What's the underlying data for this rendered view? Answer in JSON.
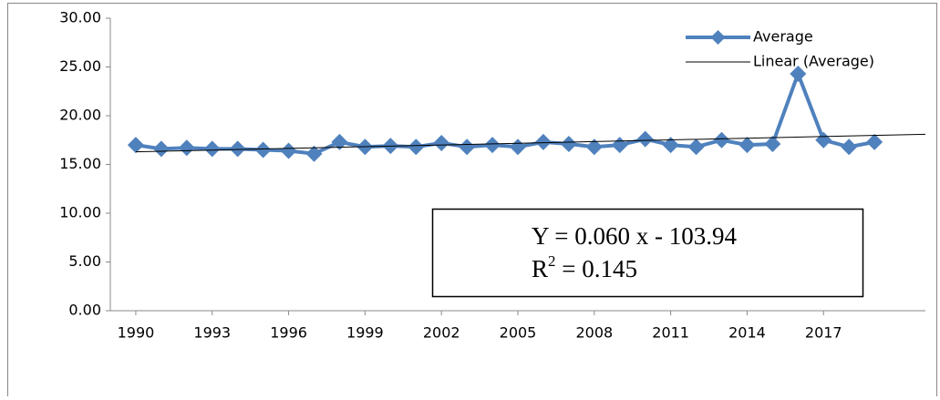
{
  "chart_data": {
    "type": "line",
    "x": [
      1990,
      1991,
      1992,
      1993,
      1994,
      1995,
      1996,
      1997,
      1998,
      1999,
      2000,
      2001,
      2002,
      2003,
      2004,
      2005,
      2006,
      2007,
      2008,
      2009,
      2010,
      2011,
      2012,
      2013,
      2014,
      2015,
      2016,
      2017,
      2018,
      2019
    ],
    "series": [
      {
        "name": "Average",
        "color": "#4f81bd",
        "values": [
          17.0,
          16.6,
          16.7,
          16.6,
          16.6,
          16.5,
          16.4,
          16.1,
          17.3,
          16.8,
          16.9,
          16.8,
          17.2,
          16.8,
          17.0,
          16.8,
          17.3,
          17.1,
          16.8,
          17.0,
          17.6,
          17.0,
          16.8,
          17.5,
          17.0,
          17.1,
          24.3,
          17.5,
          16.8,
          17.3
        ]
      },
      {
        "name": "Linear (Average)",
        "color": "#000000",
        "x": [
          1990,
          2021
        ],
        "values": [
          16.3,
          18.1
        ]
      }
    ],
    "xlim": [
      1989,
      2021
    ],
    "xticks": [
      1990,
      1993,
      1996,
      1999,
      2002,
      2005,
      2008,
      2011,
      2014,
      2017
    ],
    "ylim": [
      0,
      30
    ],
    "yticks": [
      {
        "value": 0,
        "label": "0.00"
      },
      {
        "value": 5,
        "label": "5.00"
      },
      {
        "value": 10,
        "label": "10.00"
      },
      {
        "value": 15,
        "label": "15.00"
      },
      {
        "value": 20,
        "label": "20.00"
      },
      {
        "value": 25,
        "label": "25.00"
      },
      {
        "value": 30,
        "label": "30.00"
      }
    ],
    "grid": false,
    "legend": "top-right",
    "annotation": {
      "equation": "Y = 0.060 x - 103.94",
      "r2_symbol": "R",
      "r2_exponent": "2",
      "r2_text": " = 0.145"
    }
  }
}
